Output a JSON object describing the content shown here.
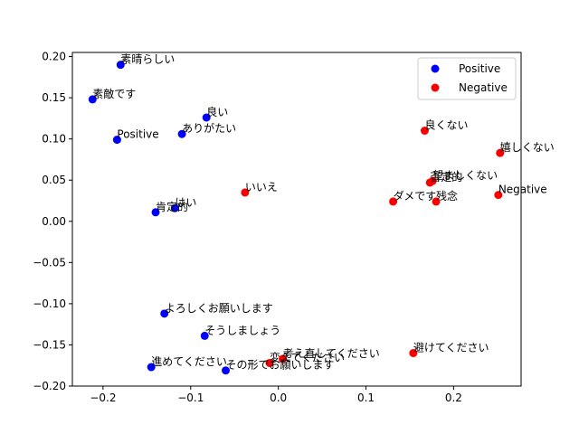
{
  "chart_data": {
    "type": "scatter",
    "title": "",
    "xlabel": "",
    "ylabel": "",
    "xlim": [
      -0.235,
      0.277
    ],
    "ylim": [
      -0.2,
      0.205
    ],
    "x_ticks": [
      -0.2,
      -0.1,
      0.0,
      0.1,
      0.2
    ],
    "x_tick_labels": [
      "−0.2",
      "−0.1",
      "0.0",
      "0.1",
      "0.2"
    ],
    "y_ticks": [
      -0.2,
      -0.15,
      -0.1,
      -0.05,
      0.0,
      0.05,
      0.1,
      0.15,
      0.2
    ],
    "y_tick_labels": [
      "−0.20",
      "−0.15",
      "−0.10",
      "−0.05",
      "0.00",
      "0.05",
      "0.10",
      "0.15",
      "0.20"
    ],
    "grid": false,
    "legend_position": "top-right",
    "series": [
      {
        "name": "Positive",
        "color": "#0000ff",
        "points": [
          {
            "x": -0.18,
            "y": 0.19,
            "label": "素晴らしい"
          },
          {
            "x": -0.212,
            "y": 0.148,
            "label": "素敵です"
          },
          {
            "x": -0.082,
            "y": 0.126,
            "label": "良い"
          },
          {
            "x": -0.11,
            "y": 0.106,
            "label": "ありがたい"
          },
          {
            "x": -0.184,
            "y": 0.099,
            "label": "Positive"
          },
          {
            "x": -0.118,
            "y": 0.016,
            "label": "はい"
          },
          {
            "x": -0.14,
            "y": 0.011,
            "label": "肯定的"
          },
          {
            "x": -0.13,
            "y": -0.112,
            "label": "よろしくお願いします"
          },
          {
            "x": -0.084,
            "y": -0.139,
            "label": "そうしましょう"
          },
          {
            "x": -0.145,
            "y": -0.177,
            "label": "進めてください"
          },
          {
            "x": -0.06,
            "y": -0.181,
            "label": "その形でお願いします"
          }
        ]
      },
      {
        "name": "Negative",
        "color": "#ff0000",
        "points": [
          {
            "x": 0.167,
            "y": 0.11,
            "label": "良くない"
          },
          {
            "x": 0.253,
            "y": 0.083,
            "label": "嬉しくない"
          },
          {
            "x": 0.173,
            "y": 0.047,
            "label": "否定的"
          },
          {
            "x": 0.176,
            "y": 0.049,
            "label": "望ましくない"
          },
          {
            "x": 0.251,
            "y": 0.032,
            "label": "Negative"
          },
          {
            "x": -0.038,
            "y": 0.035,
            "label": "いいえ"
          },
          {
            "x": 0.131,
            "y": 0.024,
            "label": "ダメです"
          },
          {
            "x": 0.18,
            "y": 0.024,
            "label": "残念"
          },
          {
            "x": 0.154,
            "y": -0.16,
            "label": "避けてください"
          },
          {
            "x": 0.005,
            "y": -0.167,
            "label": "考え直してください"
          },
          {
            "x": -0.01,
            "y": -0.172,
            "label": "変えてください"
          }
        ]
      }
    ]
  }
}
